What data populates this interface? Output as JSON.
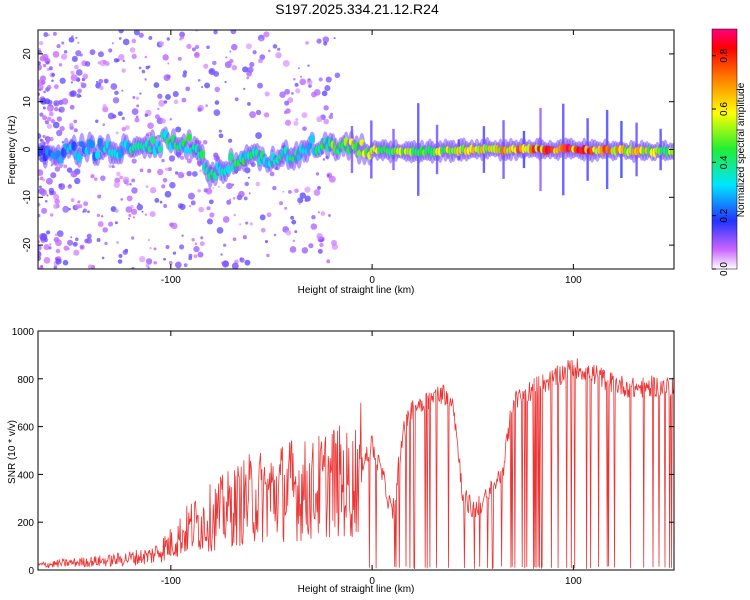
{
  "title": "S197.2025.334.21.12.R24",
  "chart_data": [
    {
      "type": "heatmap",
      "xlabel": "Height of straight line (km)",
      "ylabel": "Frequency (Hz)",
      "xlim": [
        -166,
        150
      ],
      "ylim": [
        -25,
        25
      ],
      "xticks": [
        -100,
        0,
        100
      ],
      "yticks": [
        -20,
        -10,
        0,
        10,
        20
      ],
      "colorbar": {
        "label": "Normalized spectral amplitude",
        "range": [
          0.0,
          0.9
        ],
        "ticks": [
          0.0,
          0.2,
          0.4,
          0.6,
          0.8
        ],
        "tick_labels": [
          "0.0",
          "0.2",
          "0.4",
          "0.6",
          "0.8"
        ]
      },
      "ridge": {
        "description": "dominant Doppler line frequency vs height",
        "x": [
          -160,
          -140,
          -120,
          -100,
          -90,
          -80,
          -70,
          -60,
          -50,
          -40,
          -30,
          -20,
          0,
          20,
          50,
          100,
          150
        ],
        "frequency": [
          -1,
          0,
          0,
          2,
          1,
          -5,
          -3,
          -1,
          -3,
          -1,
          1,
          1,
          0,
          -0.5,
          0,
          0,
          -0.5
        ],
        "amplitude": [
          0.25,
          0.3,
          0.35,
          0.45,
          0.4,
          0.4,
          0.45,
          0.4,
          0.35,
          0.4,
          0.35,
          0.5,
          0.55,
          0.5,
          0.6,
          0.8,
          0.5
        ]
      }
    },
    {
      "type": "line",
      "xlabel": "Height of straight line (km)",
      "ylabel": "SNR (10 * v/v)",
      "xlim": [
        -166,
        150
      ],
      "ylim": [
        0,
        1000
      ],
      "xticks": [
        -100,
        0,
        100
      ],
      "yticks": [
        0,
        200,
        400,
        600,
        800,
        1000
      ],
      "color": "#ee3333",
      "series": [
        {
          "name": "SNR",
          "x": [
            -166,
            -150,
            -130,
            -110,
            -100,
            -90,
            -80,
            -70,
            -60,
            -50,
            -40,
            -30,
            -20,
            -10,
            -5,
            0,
            5,
            10,
            15,
            20,
            30,
            35,
            40,
            45,
            50,
            55,
            60,
            65,
            70,
            80,
            90,
            100,
            110,
            120,
            130,
            140,
            150
          ],
          "values": [
            20,
            30,
            40,
            60,
            110,
            180,
            220,
            260,
            300,
            320,
            340,
            330,
            380,
            350,
            450,
            520,
            400,
            230,
            560,
            680,
            720,
            740,
            720,
            320,
            250,
            280,
            340,
            420,
            700,
            760,
            800,
            850,
            820,
            780,
            760,
            770,
            760
          ]
        }
      ],
      "dropouts_to_zero_from_x": -5
    }
  ]
}
